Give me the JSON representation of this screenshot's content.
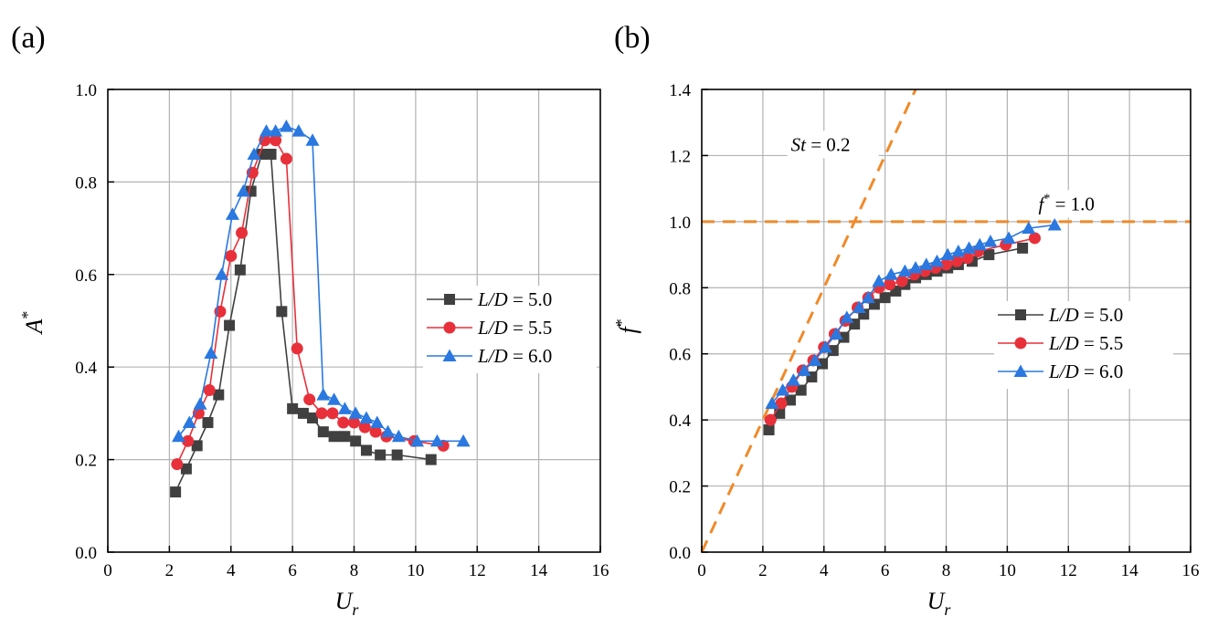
{
  "colors": {
    "series_a": "#404040",
    "series_b": "#e8303a",
    "series_c": "#2a78e0",
    "reference": "#f08a2a",
    "grid": "#b3b3b3",
    "axis": "#000000"
  },
  "chart_data": [
    {
      "type": "line",
      "panel_label": "(a)",
      "xlabel": "U",
      "xlabel_sub": "r",
      "ylabel": "A",
      "ylabel_sup": "*",
      "xlim": [
        0,
        16
      ],
      "ylim": [
        0.0,
        1.0
      ],
      "xticks": [
        "0",
        "2",
        "4",
        "6",
        "8",
        "10",
        "12",
        "14",
        "16"
      ],
      "yticks": [
        "0.0",
        "0.2",
        "0.4",
        "0.6",
        "0.8",
        "1.0"
      ],
      "grid": true,
      "legend_position": "center-right",
      "series": [
        {
          "name": "L/D = 5.0",
          "name_italic": "L/D",
          "name_value": "= 5.0",
          "marker": "square",
          "color": "#404040",
          "x": [
            2.2,
            2.55,
            2.9,
            3.25,
            3.6,
            3.95,
            4.3,
            4.65,
            5.0,
            5.3,
            5.65,
            6.0,
            6.35,
            6.65,
            7.0,
            7.35,
            7.7,
            8.05,
            8.4,
            8.85,
            9.4,
            10.5
          ],
          "y": [
            0.13,
            0.18,
            0.23,
            0.28,
            0.34,
            0.49,
            0.61,
            0.78,
            0.86,
            0.86,
            0.52,
            0.31,
            0.3,
            0.29,
            0.26,
            0.25,
            0.25,
            0.24,
            0.22,
            0.21,
            0.21,
            0.2
          ]
        },
        {
          "name": "L/D = 5.5",
          "name_italic": "L/D",
          "name_value": "= 5.5",
          "marker": "circle",
          "color": "#e8303a",
          "x": [
            2.25,
            2.6,
            2.95,
            3.3,
            3.65,
            4.0,
            4.35,
            4.7,
            5.1,
            5.45,
            5.8,
            6.15,
            6.55,
            6.95,
            7.3,
            7.65,
            8.0,
            8.35,
            8.7,
            9.05,
            9.95,
            10.9
          ],
          "y": [
            0.19,
            0.24,
            0.3,
            0.35,
            0.52,
            0.64,
            0.69,
            0.82,
            0.89,
            0.89,
            0.85,
            0.44,
            0.33,
            0.3,
            0.3,
            0.28,
            0.28,
            0.27,
            0.26,
            0.25,
            0.24,
            0.23
          ]
        },
        {
          "name": "L/D = 6.0",
          "name_italic": "L/D",
          "name_value": "= 6.0",
          "marker": "triangle",
          "color": "#2a78e0",
          "x": [
            2.3,
            2.65,
            3.0,
            3.35,
            3.7,
            4.05,
            4.4,
            4.75,
            5.15,
            5.45,
            5.8,
            6.2,
            6.65,
            7.0,
            7.35,
            7.7,
            8.05,
            8.4,
            8.75,
            9.1,
            9.45,
            10.05,
            10.7,
            11.55
          ],
          "y": [
            0.25,
            0.28,
            0.32,
            0.43,
            0.6,
            0.73,
            0.78,
            0.86,
            0.91,
            0.91,
            0.92,
            0.91,
            0.89,
            0.34,
            0.33,
            0.31,
            0.3,
            0.29,
            0.28,
            0.26,
            0.25,
            0.24,
            0.24,
            0.24
          ]
        }
      ]
    },
    {
      "type": "line",
      "panel_label": "(b)",
      "xlabel": "U",
      "xlabel_sub": "r",
      "ylabel": "f",
      "ylabel_sup": "*",
      "xlim": [
        0,
        16
      ],
      "ylim": [
        0.0,
        1.4
      ],
      "xticks": [
        "0",
        "2",
        "4",
        "6",
        "8",
        "10",
        "12",
        "14",
        "16"
      ],
      "yticks": [
        "0.0",
        "0.2",
        "0.4",
        "0.6",
        "0.8",
        "1.0",
        "1.2",
        "1.4"
      ],
      "grid": true,
      "legend_position": "center-right",
      "reference_lines": [
        {
          "label_italic": "St",
          "label_value": "= 0.2",
          "slope": 0.2,
          "x_end": 7.0
        },
        {
          "label_italic": "f",
          "label_sup": "*",
          "label_value": "= 1.0",
          "y": 1.0
        }
      ],
      "series": [
        {
          "name": "L/D = 5.0",
          "name_italic": "L/D",
          "name_value": "= 5.0",
          "marker": "square",
          "color": "#404040",
          "x": [
            2.2,
            2.55,
            2.9,
            3.25,
            3.6,
            3.95,
            4.3,
            4.65,
            5.0,
            5.3,
            5.65,
            6.0,
            6.35,
            6.65,
            7.0,
            7.35,
            7.7,
            8.05,
            8.4,
            8.85,
            9.4,
            10.5
          ],
          "y": [
            0.37,
            0.42,
            0.46,
            0.49,
            0.53,
            0.57,
            0.61,
            0.65,
            0.69,
            0.72,
            0.75,
            0.77,
            0.79,
            0.81,
            0.83,
            0.84,
            0.85,
            0.86,
            0.87,
            0.88,
            0.9,
            0.92
          ]
        },
        {
          "name": "L/D = 5.5",
          "name_italic": "L/D",
          "name_value": "= 5.5",
          "marker": "circle",
          "color": "#e8303a",
          "x": [
            2.25,
            2.6,
            2.95,
            3.3,
            3.65,
            4.0,
            4.35,
            4.7,
            5.1,
            5.45,
            5.8,
            6.15,
            6.55,
            6.95,
            7.3,
            7.65,
            8.0,
            8.35,
            8.7,
            9.05,
            9.95,
            10.9
          ],
          "y": [
            0.4,
            0.45,
            0.5,
            0.55,
            0.58,
            0.62,
            0.66,
            0.7,
            0.74,
            0.77,
            0.8,
            0.81,
            0.82,
            0.84,
            0.85,
            0.86,
            0.87,
            0.88,
            0.89,
            0.91,
            0.93,
            0.95
          ]
        },
        {
          "name": "L/D = 6.0",
          "name_italic": "L/D",
          "name_value": "= 6.0",
          "marker": "triangle",
          "color": "#2a78e0",
          "x": [
            2.3,
            2.65,
            3.0,
            3.35,
            3.7,
            4.05,
            4.4,
            4.75,
            5.15,
            5.45,
            5.8,
            6.2,
            6.65,
            7.0,
            7.35,
            7.7,
            8.05,
            8.4,
            8.75,
            9.1,
            9.45,
            10.05,
            10.7,
            11.55
          ],
          "y": [
            0.45,
            0.49,
            0.52,
            0.55,
            0.58,
            0.62,
            0.66,
            0.71,
            0.74,
            0.77,
            0.82,
            0.84,
            0.85,
            0.86,
            0.87,
            0.88,
            0.9,
            0.91,
            0.92,
            0.93,
            0.94,
            0.95,
            0.98,
            0.99
          ]
        }
      ]
    }
  ]
}
